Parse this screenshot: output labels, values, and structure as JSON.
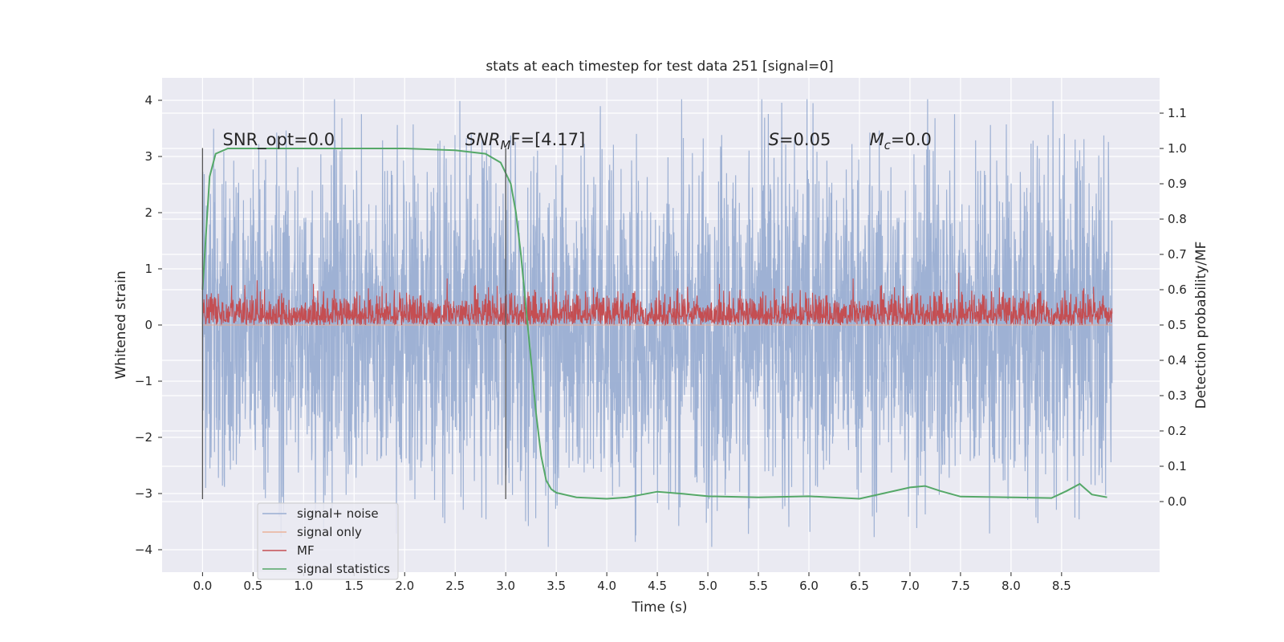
{
  "chart_data": {
    "type": "line",
    "title": "stats at each timestep for test data 251 [signal=0]",
    "xlabel": "Time (s)",
    "ylabel": "Whitened strain",
    "y2label": "Detection probability/MF",
    "xlim": [
      -0.4,
      9.47
    ],
    "ylim": [
      -4.4,
      4.4
    ],
    "y2lim": [
      -0.2,
      1.2
    ],
    "xticks": [
      0.0,
      0.5,
      1.0,
      1.5,
      2.0,
      2.5,
      3.0,
      3.5,
      4.0,
      4.5,
      5.0,
      5.5,
      6.0,
      6.5,
      7.0,
      7.5,
      8.0,
      8.5
    ],
    "xtick_labels": [
      "0.0",
      "0.5",
      "1.0",
      "1.5",
      "2.0",
      "2.5",
      "3.0",
      "3.5",
      "4.0",
      "4.5",
      "5.0",
      "5.5",
      "6.0",
      "6.5",
      "7.0",
      "7.5",
      "8.0",
      "8.5"
    ],
    "yticks": [
      4,
      3,
      2,
      1,
      0,
      -1,
      -2,
      -3,
      -4
    ],
    "ytick_labels": [
      "4",
      "3",
      "2",
      "1",
      "0",
      "−1",
      "−2",
      "−3",
      "−4"
    ],
    "y2ticks": [
      1.1,
      1.0,
      0.9,
      0.8,
      0.7,
      0.6,
      0.5,
      0.4,
      0.3,
      0.2,
      0.1,
      0.0
    ],
    "y2tick_labels": [
      "1.1",
      "1.0",
      "0.9",
      "0.8",
      "0.7",
      "0.6",
      "0.5",
      "0.4",
      "0.3",
      "0.2",
      "0.1",
      "0.0"
    ],
    "grid": true,
    "legend_position": "lower-left",
    "series": [
      {
        "name": "signal+ noise",
        "axis": "left",
        "color": "#9aaed2",
        "kind": "noise",
        "t_range": [
          0.0,
          9.0
        ],
        "typical_range": [
          -2.0,
          2.0
        ],
        "extremes": [
          -3.95,
          4.02
        ]
      },
      {
        "name": "signal only",
        "axis": "left",
        "color": "#eab19a",
        "kind": "flat",
        "value": 0.0
      },
      {
        "name": "MF",
        "axis": "right",
        "color": "#c44e52",
        "kind": "noise",
        "t_range": [
          0.0,
          9.0
        ],
        "typical_range": [
          0.5,
          0.62
        ],
        "extremes": [
          0.5,
          0.66
        ]
      },
      {
        "name": "signal statistics",
        "axis": "right",
        "color": "#55a868",
        "kind": "line",
        "x": [
          0.0,
          0.07,
          0.13,
          0.25,
          0.5,
          1.0,
          2.0,
          2.5,
          2.8,
          2.95,
          3.05,
          3.1,
          3.15,
          3.2,
          3.25,
          3.3,
          3.35,
          3.4,
          3.45,
          3.5,
          3.7,
          4.0,
          4.2,
          4.5,
          4.75,
          5.0,
          5.5,
          6.0,
          6.5,
          7.0,
          7.15,
          7.3,
          7.5,
          8.0,
          8.4,
          8.55,
          8.68,
          8.8,
          8.95
        ],
        "y": [
          0.6,
          0.92,
          0.985,
          1.0,
          1.0,
          1.0,
          1.0,
          0.995,
          0.985,
          0.96,
          0.9,
          0.82,
          0.7,
          0.55,
          0.4,
          0.25,
          0.13,
          0.06,
          0.035,
          0.025,
          0.012,
          0.008,
          0.012,
          0.028,
          0.022,
          0.015,
          0.012,
          0.015,
          0.008,
          0.04,
          0.044,
          0.03,
          0.014,
          0.012,
          0.01,
          0.03,
          0.05,
          0.02,
          0.012
        ]
      }
    ],
    "vlines": [
      {
        "x": 0.0,
        "y_from": -3.1,
        "y_to": 3.15
      },
      {
        "x": 3.0,
        "y_from": -3.1,
        "y_to": 3.15
      }
    ],
    "annotations": [
      {
        "id": "snr-opt",
        "x": 0.2,
        "y": 3.2,
        "prefix": "SNR_opt=0.0",
        "sym": "",
        "sub": "",
        "rest": ""
      },
      {
        "id": "snr-mf",
        "x": 2.6,
        "y": 3.2,
        "prefix": "",
        "sym": "SNR",
        "sub": "M",
        "rest": "F=[4.17]"
      },
      {
        "id": "s-stat",
        "x": 5.6,
        "y": 3.2,
        "prefix": "",
        "sym": "S",
        "sub": "",
        "rest": "=0.05"
      },
      {
        "id": "mc",
        "x": 6.6,
        "y": 3.2,
        "prefix": "",
        "sym": "M",
        "sub": "c",
        "rest": "=0.0"
      }
    ]
  },
  "legend": {
    "items": [
      {
        "label": "signal+ noise",
        "color": "#9aaed2"
      },
      {
        "label": "signal only",
        "color": "#eab19a"
      },
      {
        "label": "MF",
        "color": "#c44e52"
      },
      {
        "label": "signal statistics",
        "color": "#55a868"
      }
    ]
  },
  "colors": {
    "axes_bg": "#eaeaf2",
    "grid": "#ffffff",
    "text": "#262626",
    "vline": "#555555"
  }
}
